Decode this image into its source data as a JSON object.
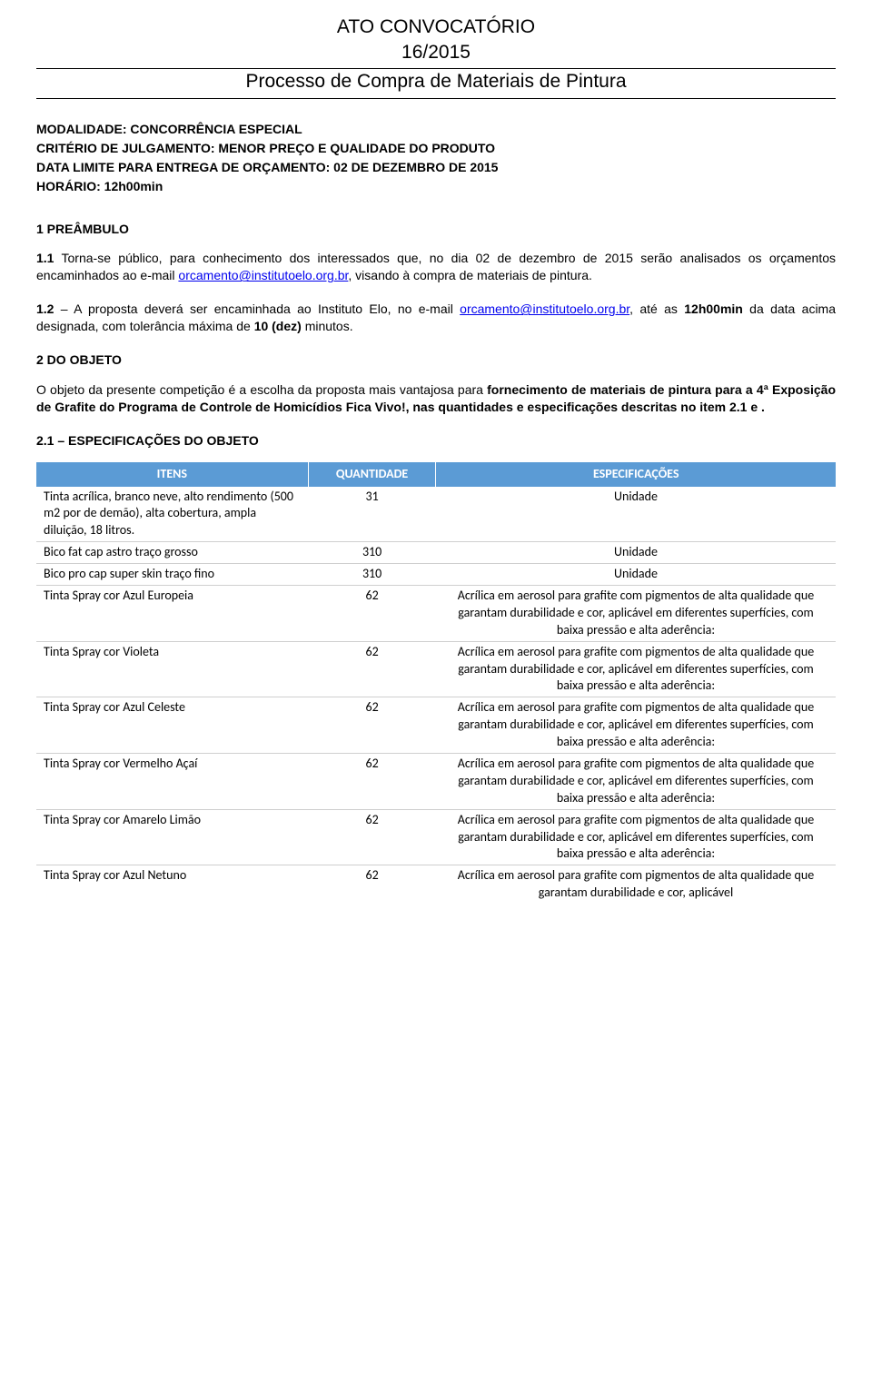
{
  "header": {
    "title": "ATO CONVOCATÓRIO",
    "number": "16/2015",
    "process": "Processo de Compra de Materiais de Pintura"
  },
  "preamble": {
    "line1": "MODALIDADE: CONCORRÊNCIA ESPECIAL",
    "line2": "CRITÉRIO DE JULGAMENTO: MENOR PREÇO E QUALIDADE DO PRODUTO",
    "line3": "DATA LIMITE PARA ENTREGA DE ORÇAMENTO: 02 DE DEZEMBRO DE 2015",
    "line4": "HORÁRIO: 12h00min"
  },
  "section1": {
    "title": "1 PREÂMBULO",
    "p11_a": "1.1 Torna-se público, para conhecimento dos interessados que, no dia 02 de dezembro de 2015 serão analisados os orçamentos encaminhados ao e-mail ",
    "p11_mail": "orcamento@institutoelo.org.br",
    "p11_b": ", visando à compra de materiais de pintura.",
    "p12_a": "1.2 – A proposta deverá ser encaminhada ao Instituto Elo, no e-mail ",
    "p12_mail": "orcamento@institutoelo.org.br",
    "p12_b": ", até as ",
    "p12_time": "12h00min",
    "p12_c": " da data acima designada, com tolerância máxima de ",
    "p12_tol": "10 (dez)",
    "p12_d": " minutos."
  },
  "section2": {
    "title": "2 DO OBJETO",
    "p_a": "O objeto da presente competição é a escolha da proposta mais vantajosa para ",
    "p_bold": "fornecimento de materiais de pintura para a 4ª Exposição de Grafite do Programa de Controle de Homicídios Fica Vivo!, nas quantidades e especificações descritas no item 2.1 e .",
    "spec_title": "2.1 – ESPECIFICAÇÕES DO OBJETO"
  },
  "table": {
    "headers": {
      "item": "ITENS",
      "qty": "QUANTIDADE",
      "spec": "ESPECIFICAÇÕES"
    },
    "spec_long": "Acrílica em aerosol para grafite com pigmentos de alta qualidade que garantam durabilidade e cor, aplicável em diferentes superfícies, com baixa pressão e alta aderência:",
    "spec_trunc": "Acrílica em aerosol para grafite com pigmentos de alta qualidade que garantam durabilidade e cor, aplicável",
    "rows": {
      "r1": {
        "item": "Tinta acrílica, branco neve, alto rendimento (500 m2 por de demão), alta cobertura, ampla diluição, 18 litros.",
        "qty": "31",
        "spec": "Unidade"
      },
      "r2": {
        "item": "Bico fat cap astro traço grosso",
        "qty": "310",
        "spec": "Unidade"
      },
      "r3": {
        "item": "Bico pro cap super skin  traço fino",
        "qty": "310",
        "spec": "Unidade"
      },
      "r4": {
        "item": "Tinta Spray cor  Azul Europeia",
        "qty": "62"
      },
      "r5": {
        "item": "Tinta Spray cor Violeta",
        "qty": "62"
      },
      "r6": {
        "item": "Tinta Spray cor Azul Celeste",
        "qty": "62"
      },
      "r7": {
        "item": "Tinta Spray cor Vermelho Açaí",
        "qty": "62"
      },
      "r8": {
        "item": "Tinta Spray cor Amarelo Limão",
        "qty": "62"
      },
      "r9": {
        "item": "Tinta Spray cor Azul Netuno",
        "qty": "62"
      }
    }
  }
}
